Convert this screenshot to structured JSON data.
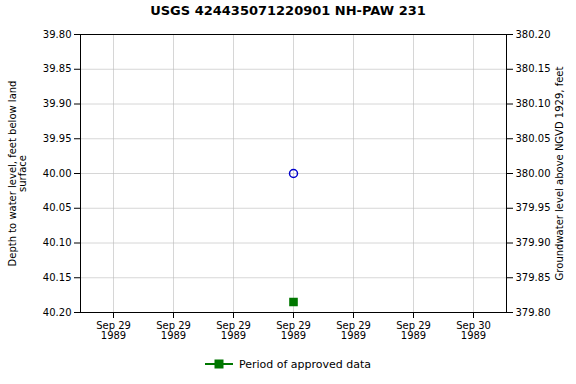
{
  "chart_data": {
    "type": "scatter",
    "title": "USGS 424435071220901 NH-PAW  231",
    "y_label": "Depth to water level, feet below land\nsurface",
    "y2_label": "Groundwater level above NGVD 1929, feet",
    "categories": [
      "Sep 29\n1989",
      "Sep 29\n1989",
      "Sep 29\n1989",
      "Sep 29\n1989",
      "Sep 29\n1989",
      "Sep 29\n1989",
      "Sep 30\n1989"
    ],
    "series": [
      {
        "color": "#0000cc",
        "marker": "circle",
        "values": [
          null,
          null,
          null,
          40.0,
          null,
          null,
          null
        ]
      },
      {
        "name": "Period of approved data",
        "color": "#007700",
        "marker": "square",
        "values": [
          null,
          null,
          null,
          40.185,
          null,
          null,
          null
        ]
      }
    ],
    "ylim": [
      40.2,
      39.8
    ],
    "yticks": [
      {
        "value": 39.8,
        "label": "39.80"
      },
      {
        "value": 39.85,
        "label": "39.85"
      },
      {
        "value": 39.9,
        "label": "39.90"
      },
      {
        "value": 39.95,
        "label": "39.95"
      },
      {
        "value": 40.0,
        "label": "40.00"
      },
      {
        "value": 40.05,
        "label": "40.05"
      },
      {
        "value": 40.1,
        "label": "40.10"
      },
      {
        "value": 40.15,
        "label": "40.15"
      },
      {
        "value": 40.2,
        "label": "40.20"
      }
    ],
    "y2lim": [
      379.8,
      380.2
    ],
    "y2ticks": [
      {
        "value": 380.2,
        "label": "380.20"
      },
      {
        "value": 380.15,
        "label": "380.15"
      },
      {
        "value": 380.1,
        "label": "380.10"
      },
      {
        "value": 380.05,
        "label": "380.05"
      },
      {
        "value": 380.0,
        "label": "380.00"
      },
      {
        "value": 379.95,
        "label": "379.95"
      },
      {
        "value": 379.9,
        "label": "379.90"
      },
      {
        "value": 379.85,
        "label": "379.85"
      },
      {
        "value": 379.8,
        "label": "379.80"
      }
    ],
    "grid": true,
    "legend": "bottom"
  }
}
